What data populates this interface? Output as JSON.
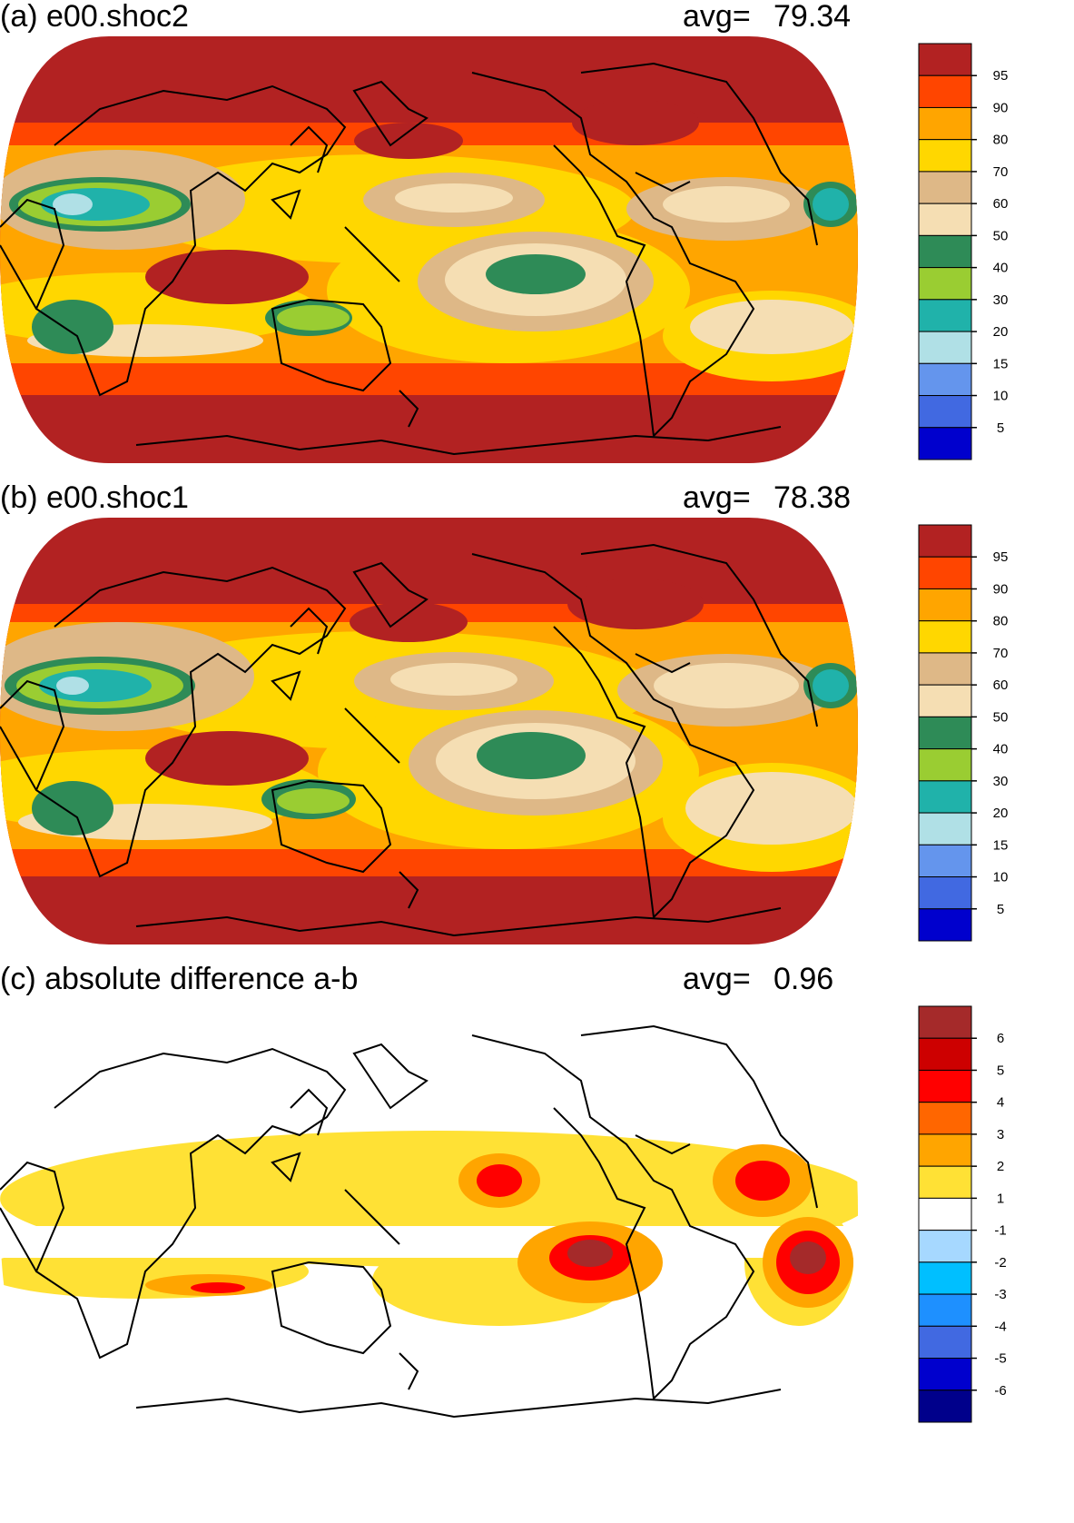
{
  "panels": [
    {
      "title": "(a) e00.shoc2",
      "avg_label": "avg=",
      "avg_value": "79.34",
      "colorbar": {
        "labels": [
          "95",
          "90",
          "80",
          "70",
          "60",
          "50",
          "40",
          "30",
          "20",
          "15",
          "10",
          "5"
        ],
        "colors": [
          "#b22222",
          "#ff4500",
          "#ffa500",
          "#ffd700",
          "#deb887",
          "#f5deb3",
          "#2e8b57",
          "#9acd32",
          "#20b2aa",
          "#b0e0e6",
          "#6495ed",
          "#4169e1",
          "#0000cd"
        ]
      }
    },
    {
      "title": "(b) e00.shoc1",
      "avg_label": "avg=",
      "avg_value": "78.38",
      "colorbar": {
        "labels": [
          "95",
          "90",
          "80",
          "70",
          "60",
          "50",
          "40",
          "30",
          "20",
          "15",
          "10",
          "5"
        ],
        "colors": [
          "#b22222",
          "#ff4500",
          "#ffa500",
          "#ffd700",
          "#deb887",
          "#f5deb3",
          "#2e8b57",
          "#9acd32",
          "#20b2aa",
          "#b0e0e6",
          "#6495ed",
          "#4169e1",
          "#0000cd"
        ]
      }
    },
    {
      "title": "(c) absolute difference a-b",
      "avg_label": "avg=",
      "avg_value": "0.96",
      "colorbar": {
        "labels": [
          "6",
          "5",
          "4",
          "3",
          "2",
          "1",
          "-1",
          "-2",
          "-3",
          "-4",
          "-5",
          "-6"
        ],
        "colors": [
          "#a52a2a",
          "#cd0000",
          "#ff0000",
          "#ff6600",
          "#ffa500",
          "#ffe135",
          "#ffffff",
          "#a6d8ff",
          "#00bfff",
          "#1e90ff",
          "#4169e1",
          "#0000cd",
          "#00008b"
        ]
      }
    }
  ]
}
